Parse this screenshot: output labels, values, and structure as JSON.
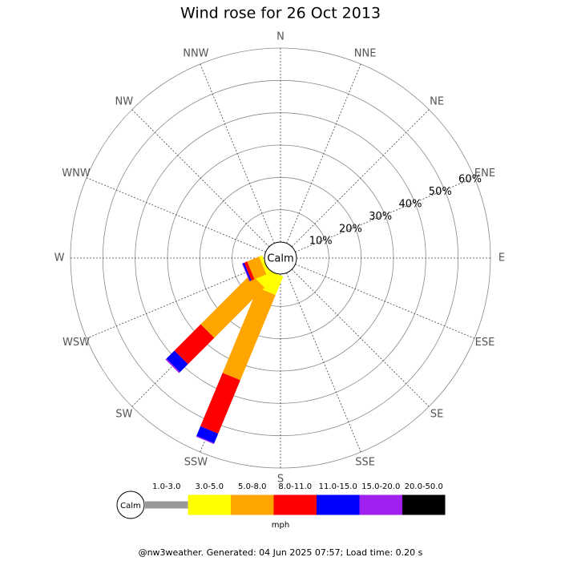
{
  "chart_data": {
    "type": "windrose",
    "title": "Wind rose for 26 Oct 2013",
    "directions": [
      "N",
      "NNE",
      "NE",
      "ENE",
      "E",
      "ESE",
      "SE",
      "SSE",
      "S",
      "SSW",
      "SW",
      "WSW",
      "W",
      "WNW",
      "NW",
      "NNW"
    ],
    "calm_label": "Calm",
    "rlim": [
      0,
      60
    ],
    "rticks": [
      {
        "value": 10,
        "label": "10%"
      },
      {
        "value": 20,
        "label": "20%"
      },
      {
        "value": 30,
        "label": "30%"
      },
      {
        "value": 40,
        "label": "40%"
      },
      {
        "value": 50,
        "label": "50%"
      },
      {
        "value": 60,
        "label": "60%"
      }
    ],
    "legend_unit": "mph",
    "series": [
      {
        "name": "1.0-3.0",
        "color": "#999999",
        "values": [
          0,
          0,
          0,
          0,
          0,
          0,
          0,
          0,
          0,
          0,
          0,
          0,
          0,
          0,
          0,
          0
        ]
      },
      {
        "name": "3.0-5.0",
        "color": "#ffff00",
        "values": [
          0,
          0,
          0,
          0,
          0,
          0,
          0,
          0,
          0,
          6.2,
          5,
          1,
          0,
          0,
          0,
          0
        ]
      },
      {
        "name": "5.0-8.0",
        "color": "#ffa500",
        "values": [
          0,
          0,
          0,
          0,
          0,
          0,
          0,
          0,
          0,
          28.5,
          22,
          4,
          0,
          0,
          0,
          0
        ]
      },
      {
        "name": "8.0-11.0",
        "color": "#ff0000",
        "values": [
          0,
          0,
          0,
          0,
          0,
          0,
          0,
          0,
          0,
          17.9,
          11.5,
          1,
          0,
          0,
          0,
          0
        ]
      },
      {
        "name": "11.0-15.0",
        "color": "#0000ff",
        "values": [
          0,
          0,
          0,
          0,
          0,
          0,
          0,
          0,
          0,
          3.2,
          3.5,
          0.5,
          0,
          0,
          0,
          0
        ]
      },
      {
        "name": "15.0-20.0",
        "color": "#a020f0",
        "values": [
          0,
          0,
          0,
          0,
          0,
          0,
          0,
          0,
          0,
          0.3,
          0.4,
          0.2,
          0,
          0,
          0,
          0
        ]
      },
      {
        "name": "20.0-50.0",
        "color": "#000000",
        "values": [
          0,
          0,
          0,
          0,
          0,
          0,
          0,
          0,
          0,
          0,
          0,
          0,
          0,
          0,
          0,
          0
        ]
      }
    ]
  },
  "footer": "@nw3weather. Generated: 04 Jun 2025 07:57; Load time: 0.20 s"
}
